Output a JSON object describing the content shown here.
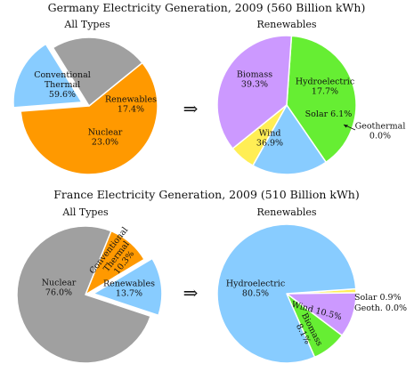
{
  "chart_data": [
    {
      "type": "pie",
      "title": "Germany Electricity Generation, 2009 (560 Billion kWh)",
      "subtitle": "All Types",
      "slices": [
        {
          "label": "Conventional Thermal",
          "value": 59.6,
          "display": "59.6%",
          "color": "#FF9900"
        },
        {
          "label": "Renewables",
          "value": 17.4,
          "display": "17.4%",
          "color": "#88CCFF",
          "exploded": true
        },
        {
          "label": "Nuclear",
          "value": 23.0,
          "display": "23.0%",
          "color": "#A0A0A0"
        }
      ]
    },
    {
      "type": "pie",
      "title": "",
      "subtitle": "Renewables",
      "slices": [
        {
          "label": "Biomass",
          "value": 39.3,
          "display": "39.3%",
          "color": "#66EE33"
        },
        {
          "label": "Hydroelectric",
          "value": 17.7,
          "display": "17.7%",
          "color": "#88CCFF"
        },
        {
          "label": "Solar",
          "value": 6.1,
          "display": "6.1%",
          "color": "#FFEE55"
        },
        {
          "label": "Geothermal",
          "value": 0.0,
          "display": "0.0%",
          "color": "#AADDFF"
        },
        {
          "label": "Wind",
          "value": 36.9,
          "display": "36.9%",
          "color": "#CC99FF"
        }
      ]
    },
    {
      "type": "pie",
      "title": "France Electricity Generation, 2009 (510 Billion kWh)",
      "subtitle": "All Types",
      "slices": [
        {
          "label": "Conventional Thermal",
          "value": 10.3,
          "display": "10.3%",
          "color": "#FF9900"
        },
        {
          "label": "Renewables",
          "value": 13.7,
          "display": "13.7%",
          "color": "#88CCFF",
          "exploded": true
        },
        {
          "label": "Nuclear",
          "value": 76.0,
          "display": "76.0%",
          "color": "#A0A0A0"
        }
      ]
    },
    {
      "type": "pie",
      "title": "",
      "subtitle": "Renewables",
      "slices": [
        {
          "label": "Solar",
          "value": 0.9,
          "display": "0.9%",
          "color": "#FFEE55"
        },
        {
          "label": "Geoth.",
          "value": 0.0,
          "display": "0.0%",
          "color": "#AADDFF"
        },
        {
          "label": "Wind",
          "value": 10.5,
          "display": "10.5%",
          "color": "#CC99FF"
        },
        {
          "label": "Biomass",
          "value": 8.1,
          "display": "8.1%",
          "color": "#66EE33"
        },
        {
          "label": "Hydroelectric",
          "value": 80.5,
          "display": "80.5%",
          "color": "#88CCFF"
        }
      ]
    }
  ],
  "arrow_glyph": "⇒"
}
